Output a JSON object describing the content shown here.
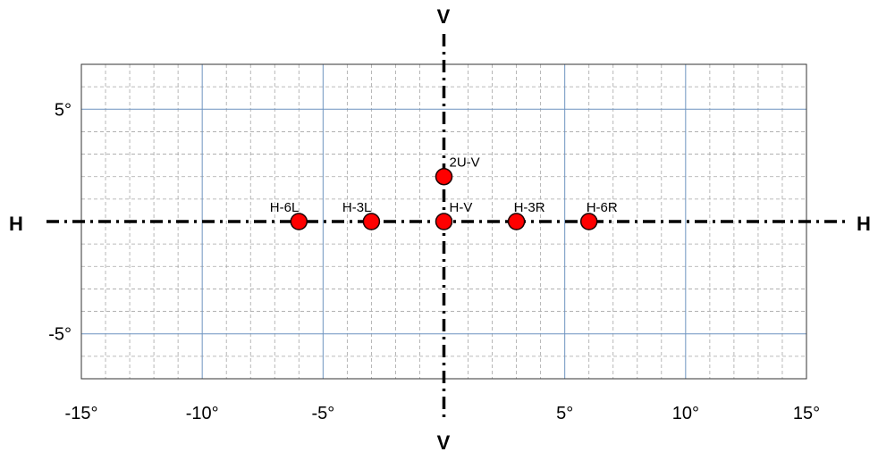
{
  "chart_data": {
    "type": "scatter",
    "title": "",
    "xlabel": "",
    "ylabel": "",
    "xlim": [
      -15,
      15
    ],
    "ylim": [
      -7,
      7
    ],
    "x_ticks": [
      -15,
      -10,
      -5,
      5,
      10,
      15
    ],
    "x_tick_labels": [
      "-15°",
      "-10°",
      "-5°",
      "5°",
      "10°",
      "15°"
    ],
    "y_ticks": [
      5,
      -5
    ],
    "y_tick_labels": [
      "5°",
      "-5°"
    ],
    "minor_step": 1,
    "major_step": 5,
    "grid": true,
    "reference_lines": {
      "horizontal_label": "H",
      "vertical_label": "V",
      "style": "dash-dot"
    },
    "points": [
      {
        "label": "H-6L",
        "x": -6,
        "y": 0
      },
      {
        "label": "H-3L",
        "x": -3,
        "y": 0
      },
      {
        "label": "H-V",
        "x": 0,
        "y": 0
      },
      {
        "label": "H-3R",
        "x": 3,
        "y": 0
      },
      {
        "label": "H-6R",
        "x": 6,
        "y": 0
      },
      {
        "label": "2U-V",
        "x": 0,
        "y": 2
      }
    ],
    "colors": {
      "point_fill": "#ff0000",
      "point_stroke": "#1a0000",
      "major_grid": "#6f94c0",
      "minor_grid": "#a6a6a6",
      "frame": "#333333",
      "reference_line": "#000000"
    }
  }
}
